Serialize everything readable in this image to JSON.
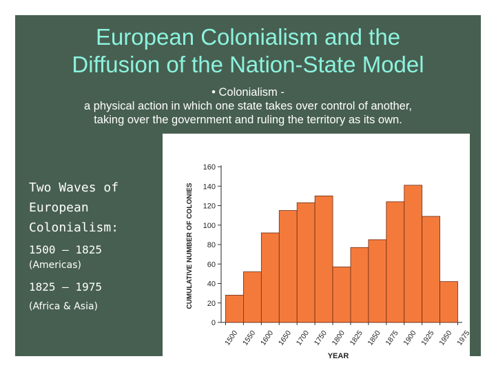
{
  "slide": {
    "title_lines": [
      "European Colonialism and the",
      "Diffusion of the Nation-State Model"
    ],
    "definition_lines": [
      "• Colonialism -",
      "a physical action in which one state takes over control of another,",
      "taking over the government and ruling the territory as its own."
    ],
    "side_heading": "Two Waves of\nEuropean\nColonialism:",
    "wave1_range": "1500 – 1825",
    "wave1_region": "(Americas)",
    "wave2_range": "1825 – 1975",
    "wave2_region": "(Africa & Asia)"
  },
  "chart_data": {
    "type": "bar",
    "xlabel": "YEAR",
    "ylabel": "CUMULATIVE NUMBER OF COLONIES",
    "ylim": [
      0,
      160
    ],
    "yticks": [
      0,
      20,
      40,
      60,
      80,
      100,
      120,
      140,
      160
    ],
    "x_tick_labels": [
      "1500",
      "1550",
      "1600",
      "1650",
      "1700",
      "1750",
      "1800",
      "1825",
      "1850",
      "1875",
      "1900",
      "1925",
      "1950",
      "1975"
    ],
    "values": [
      28,
      52,
      92,
      115,
      123,
      130,
      57,
      77,
      85,
      124,
      141,
      109,
      42
    ],
    "bar_color": "#f47a3c",
    "grid": false
  }
}
